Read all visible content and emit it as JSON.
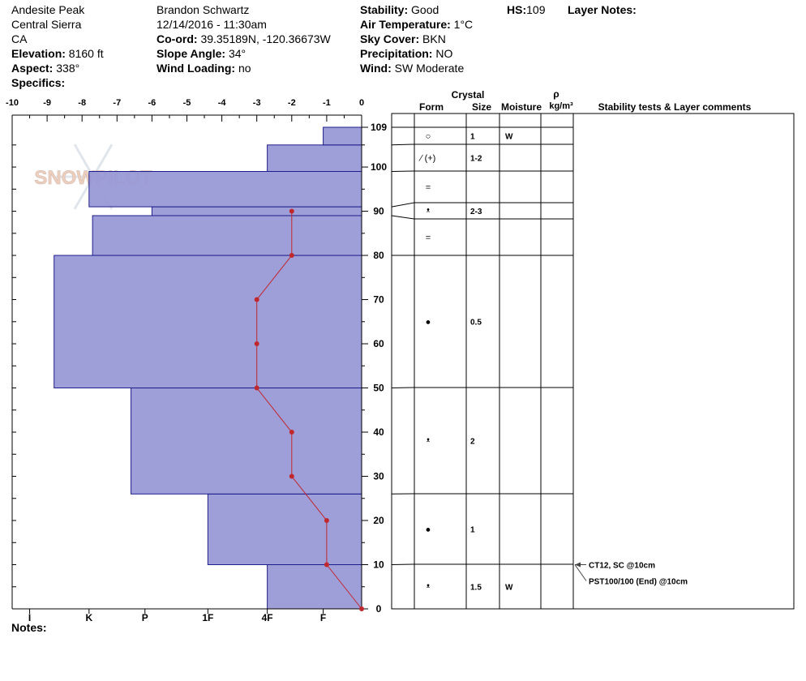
{
  "header": {
    "location": "Andesite Peak",
    "region": "Central Sierra",
    "state": "CA",
    "elevation_label": "Elevation:",
    "elevation_value": "8160 ft",
    "aspect_label": "Aspect:",
    "aspect_value": "338°",
    "specifics_label": "Specifics:",
    "observer": "Brandon Schwartz",
    "datetime": "12/14/2016 - 11:30am",
    "coord_label": "Co-ord:",
    "coord_value": "39.35189N, -120.36673W",
    "slope_label": "Slope Angle:",
    "slope_value": "34°",
    "wind_loading_label": "Wind Loading:",
    "wind_loading_value": "no",
    "stability_label": "Stability:",
    "stability_value": "Good",
    "air_temp_label": "Air Temperature:",
    "air_temp_value": "1°C",
    "sky_label": "Sky Cover:",
    "sky_value": "BKN",
    "precip_label": "Precipitation:",
    "precip_value": "NO",
    "wind_label": "Wind:",
    "wind_value": "SW Moderate",
    "hs_label": "HS:",
    "hs_value": "109",
    "layer_notes_label": "Layer Notes:",
    "notes_label": "Notes:",
    "watermark": "SNOWPILOT"
  },
  "table_headers": {
    "crystal": "Crystal",
    "form": "Form",
    "size": "Size",
    "moisture": "Moisture",
    "rho": "ρ",
    "density_unit": "kg/m³",
    "comments": "Stability tests & Layer comments"
  },
  "chart_data": {
    "type": "bar",
    "top_axis_ticks": [
      "-10",
      "-9",
      "-8",
      "-7",
      "-6",
      "-5",
      "-4",
      "-3",
      "-2",
      "-1",
      "0"
    ],
    "temp_range": [
      -10,
      0
    ],
    "height_range": [
      0,
      109
    ],
    "height_ticks": [
      "0",
      "10",
      "20",
      "30",
      "40",
      "50",
      "60",
      "70",
      "80",
      "90",
      "100",
      "109"
    ],
    "hardness_labels": [
      "I",
      "K",
      "P",
      "1F",
      "4F",
      "F"
    ],
    "hardness_positions": [
      -9.5,
      -7.8,
      -6.2,
      -4.4,
      -2.7,
      -1.1
    ],
    "layers": [
      {
        "bottom": 0,
        "top": 10,
        "hardness": -2.7
      },
      {
        "bottom": 10,
        "top": 26,
        "hardness": -4.4
      },
      {
        "bottom": 26,
        "top": 50,
        "hardness": -6.6
      },
      {
        "bottom": 50,
        "top": 80,
        "hardness": -8.8
      },
      {
        "bottom": 80,
        "top": 89,
        "hardness": -7.7
      },
      {
        "bottom": 89,
        "top": 91,
        "hardness": -6.0
      },
      {
        "bottom": 91,
        "top": 99,
        "hardness": -7.8
      },
      {
        "bottom": 99,
        "top": 105,
        "hardness": -2.7
      },
      {
        "bottom": 105,
        "top": 109,
        "hardness": -1.1
      }
    ],
    "temperature_profile": [
      {
        "height": 0,
        "temp": 0
      },
      {
        "height": 10,
        "temp": -1
      },
      {
        "height": 20,
        "temp": -1
      },
      {
        "height": 30,
        "temp": -2
      },
      {
        "height": 40,
        "temp": -2
      },
      {
        "height": 50,
        "temp": -3
      },
      {
        "height": 60,
        "temp": -3
      },
      {
        "height": 70,
        "temp": -3
      },
      {
        "height": 80,
        "temp": -2
      },
      {
        "height": 90,
        "temp": -2
      }
    ],
    "layer_rows": [
      {
        "bottom": 105,
        "top": 109,
        "label_height": 107,
        "form": "○",
        "size": "1",
        "moisture": "W"
      },
      {
        "bottom": 99,
        "top": 105,
        "label_height": 102,
        "form": "∕ (+)",
        "size": "1-2",
        "moisture": ""
      },
      {
        "bottom": 91,
        "top": 99,
        "label_height": 95,
        "form": "=",
        "size": "",
        "moisture": ""
      },
      {
        "bottom": 89,
        "top": 91,
        "label_height": 90,
        "form": "ᵜ",
        "size": "2-3",
        "moisture": ""
      },
      {
        "bottom": 80,
        "top": 89,
        "label_height": 84,
        "form": "=",
        "size": "",
        "moisture": ""
      },
      {
        "bottom": 50,
        "top": 80,
        "label_height": 65,
        "form": "●",
        "size": "0.5",
        "moisture": ""
      },
      {
        "bottom": 26,
        "top": 50,
        "label_height": 38,
        "form": "ᵜ",
        "size": "2",
        "moisture": ""
      },
      {
        "bottom": 10,
        "top": 26,
        "label_height": 18,
        "form": "●",
        "size": "1",
        "moisture": ""
      },
      {
        "bottom": 0,
        "top": 10,
        "label_height": 5,
        "form": "ᵜ",
        "size": "1.5",
        "moisture": "W"
      }
    ],
    "stability_tests": [
      {
        "height": 10,
        "text": "CT12, SC @10cm"
      },
      {
        "height": 10,
        "text": "PST100/100 (End) @10cm"
      }
    ],
    "colors": {
      "layer_fill": "#9999d6",
      "layer_stroke": "#1e1e8c",
      "temp_line": "#c0282d"
    }
  }
}
